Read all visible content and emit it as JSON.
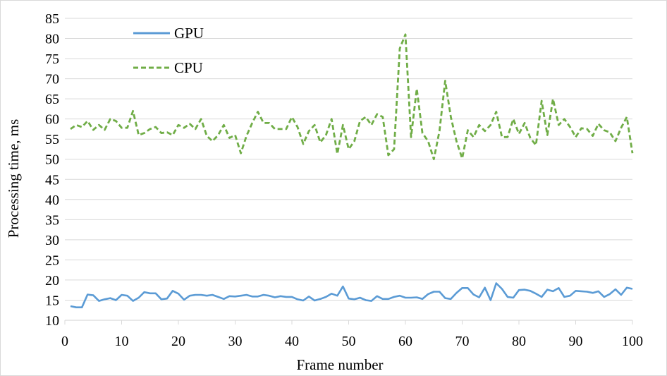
{
  "chart_data": {
    "type": "line",
    "title": "",
    "xlabel": "Frame number",
    "ylabel": "Processing time, ms",
    "xlim": [
      0,
      100
    ],
    "ylim": [
      10,
      85
    ],
    "x_ticks": [
      "0",
      "10",
      "20",
      "30",
      "40",
      "50",
      "60",
      "70",
      "80",
      "90",
      "100"
    ],
    "y_ticks": [
      "10",
      "15",
      "20",
      "25",
      "30",
      "35",
      "40",
      "45",
      "50",
      "55",
      "60",
      "65",
      "70",
      "75",
      "80",
      "85"
    ],
    "grid": "horizontal",
    "legend_position": "top-left",
    "x": [
      1,
      2,
      3,
      4,
      5,
      6,
      7,
      8,
      9,
      10,
      11,
      12,
      13,
      14,
      15,
      16,
      17,
      18,
      19,
      20,
      21,
      22,
      23,
      24,
      25,
      26,
      27,
      28,
      29,
      30,
      31,
      32,
      33,
      34,
      35,
      36,
      37,
      38,
      39,
      40,
      41,
      42,
      43,
      44,
      45,
      46,
      47,
      48,
      49,
      50,
      51,
      52,
      53,
      54,
      55,
      56,
      57,
      58,
      59,
      60,
      61,
      62,
      63,
      64,
      65,
      66,
      67,
      68,
      69,
      70,
      71,
      72,
      73,
      74,
      75,
      76,
      77,
      78,
      79,
      80,
      81,
      82,
      83,
      84,
      85,
      86,
      87,
      88,
      89,
      90,
      91,
      92,
      93,
      94,
      95,
      96,
      97,
      98,
      99,
      100
    ],
    "series": [
      {
        "name": "GPU",
        "color": "#5b9bd5",
        "style": "solid",
        "values": [
          13.5,
          13.2,
          13.2,
          16.4,
          16.2,
          14.8,
          15.2,
          15.5,
          15.0,
          16.3,
          16.1,
          14.8,
          15.6,
          17.0,
          16.7,
          16.7,
          15.2,
          15.4,
          17.3,
          16.6,
          15.1,
          16.1,
          16.3,
          16.3,
          16.1,
          16.3,
          15.8,
          15.3,
          16.0,
          15.9,
          16.1,
          16.3,
          15.9,
          15.9,
          16.3,
          16.1,
          15.7,
          16.0,
          15.8,
          15.8,
          15.2,
          14.9,
          15.9,
          14.9,
          15.3,
          15.8,
          16.6,
          16.1,
          18.4,
          15.4,
          15.2,
          15.6,
          15.0,
          14.8,
          16.0,
          15.3,
          15.3,
          15.8,
          16.1,
          15.6,
          15.6,
          15.7,
          15.3,
          16.5,
          17.1,
          17.1,
          15.5,
          15.3,
          16.8,
          18.0,
          18.0,
          16.4,
          15.7,
          18.1,
          15.0,
          19.2,
          17.8,
          15.8,
          15.6,
          17.5,
          17.6,
          17.3,
          16.6,
          15.8,
          17.6,
          17.2,
          18.0,
          15.8,
          16.1,
          17.3,
          17.2,
          17.1,
          16.8,
          17.2,
          15.8,
          16.5,
          17.7,
          16.3,
          18.1,
          17.8
        ]
      },
      {
        "name": "CPU",
        "color": "#70ad47",
        "style": "dashed",
        "values": [
          57.5,
          58.5,
          58.0,
          59.5,
          57.3,
          58.5,
          57.3,
          60.0,
          59.5,
          57.8,
          57.8,
          62.0,
          56.0,
          56.5,
          57.5,
          58.0,
          56.5,
          56.7,
          56.0,
          58.5,
          57.8,
          58.8,
          57.5,
          60.0,
          55.8,
          54.5,
          56.0,
          58.5,
          55.3,
          56.0,
          51.5,
          55.8,
          59.0,
          61.8,
          59.0,
          59.0,
          57.5,
          57.5,
          57.5,
          60.5,
          58.0,
          53.8,
          57.0,
          58.5,
          54.2,
          56.0,
          60.0,
          51.3,
          58.5,
          52.5,
          54.5,
          59.5,
          60.5,
          58.5,
          61.2,
          60.5,
          51.0,
          52.5,
          77.5,
          81.0,
          55.5,
          67.5,
          56.5,
          54.5,
          50.0,
          57.0,
          69.5,
          60.5,
          54.5,
          50.2,
          57.2,
          55.5,
          58.5,
          57.0,
          58.5,
          61.8,
          55.5,
          55.5,
          60.0,
          56.3,
          59.0,
          55.3,
          53.5,
          64.5,
          56.0,
          65.0,
          58.5,
          60.0,
          58.0,
          55.5,
          57.7,
          57.5,
          55.8,
          58.8,
          57.2,
          56.7,
          54.5,
          57.8,
          60.5,
          51.5
        ]
      }
    ]
  }
}
